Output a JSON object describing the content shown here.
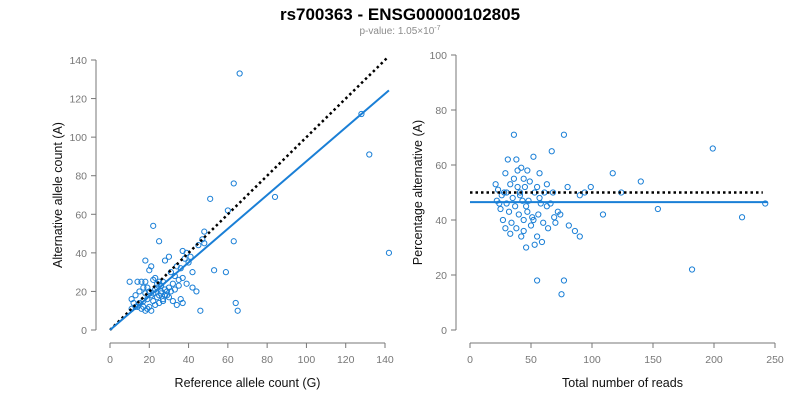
{
  "title": "rs700363 - ENSG00000102805",
  "subtitle": {
    "prefix": "p-value: 1.05×10",
    "exponent": "-7"
  },
  "colors": {
    "points": "#1a7fd6",
    "fit_line": "#1a7fd6",
    "reference_line": "#000000"
  },
  "chart_data": [
    {
      "type": "scatter",
      "xlabel": "Reference allele count (G)",
      "ylabel": "Alternative allele count (A)",
      "xlim": [
        0,
        140
      ],
      "ylim": [
        0,
        140
      ],
      "xticks": [
        0,
        20,
        40,
        60,
        80,
        100,
        120,
        140
      ],
      "yticks": [
        0,
        20,
        40,
        60,
        80,
        100,
        120,
        140
      ],
      "reference_line": {
        "style": "dotted",
        "color": "#000000",
        "intercept": 0,
        "slope": 1.0,
        "x_range": [
          0,
          141
        ]
      },
      "fit_line": {
        "style": "solid",
        "color": "#1a7fd6",
        "intercept": 0,
        "slope": 0.875,
        "x_range": [
          0,
          142
        ]
      },
      "points": [
        [
          66,
          133
        ],
        [
          128,
          112
        ],
        [
          132,
          91
        ],
        [
          142,
          40
        ],
        [
          84,
          69
        ],
        [
          63,
          76
        ],
        [
          51,
          68
        ],
        [
          60,
          62
        ],
        [
          48,
          51
        ],
        [
          47,
          47
        ],
        [
          63,
          46
        ],
        [
          53,
          31
        ],
        [
          59,
          30
        ],
        [
          64,
          14
        ],
        [
          65,
          10
        ],
        [
          46,
          10
        ],
        [
          22,
          54
        ],
        [
          25,
          46
        ],
        [
          37,
          41
        ],
        [
          39,
          40
        ],
        [
          38,
          37
        ],
        [
          40,
          35
        ],
        [
          34,
          33
        ],
        [
          36,
          32
        ],
        [
          30,
          38
        ],
        [
          28,
          36
        ],
        [
          31,
          30
        ],
        [
          33,
          28
        ],
        [
          35,
          26
        ],
        [
          37,
          27
        ],
        [
          39,
          24
        ],
        [
          42,
          22
        ],
        [
          44,
          20
        ],
        [
          36,
          16
        ],
        [
          37,
          14
        ],
        [
          32,
          24
        ],
        [
          30,
          22
        ],
        [
          29,
          20
        ],
        [
          27,
          25
        ],
        [
          25,
          25
        ],
        [
          23,
          27
        ],
        [
          21,
          33
        ],
        [
          18,
          36
        ],
        [
          20,
          31
        ],
        [
          22,
          26
        ],
        [
          24,
          22
        ],
        [
          26,
          20
        ],
        [
          28,
          18
        ],
        [
          30,
          17
        ],
        [
          32,
          15
        ],
        [
          34,
          13
        ],
        [
          18,
          25
        ],
        [
          16,
          25
        ],
        [
          14,
          25
        ],
        [
          19,
          22
        ],
        [
          17,
          22
        ],
        [
          15,
          20
        ],
        [
          13,
          18
        ],
        [
          11,
          16
        ],
        [
          10,
          25
        ],
        [
          12,
          14
        ],
        [
          14,
          12
        ],
        [
          16,
          11
        ],
        [
          18,
          10
        ],
        [
          20,
          12
        ],
        [
          22,
          15
        ],
        [
          24,
          17
        ],
        [
          26,
          19
        ],
        [
          28,
          21
        ],
        [
          21,
          18
        ],
        [
          19,
          16
        ],
        [
          17,
          15
        ],
        [
          15,
          14
        ],
        [
          13,
          12
        ],
        [
          11,
          11
        ],
        [
          23,
          13
        ],
        [
          25,
          14
        ],
        [
          27,
          16
        ],
        [
          29,
          18
        ],
        [
          31,
          20
        ],
        [
          33,
          21
        ],
        [
          35,
          23
        ],
        [
          22,
          19
        ],
        [
          20,
          20
        ],
        [
          18,
          19
        ],
        [
          24,
          24
        ],
        [
          26,
          23
        ],
        [
          21,
          10
        ],
        [
          19,
          11
        ],
        [
          17,
          12
        ],
        [
          23,
          21
        ],
        [
          25,
          18
        ],
        [
          27,
          15
        ],
        [
          42,
          30
        ],
        [
          45,
          44
        ],
        [
          48,
          45
        ],
        [
          41,
          38
        ]
      ]
    },
    {
      "type": "scatter",
      "xlabel": "Total number of reads",
      "ylabel": "Percentage alternative (A)",
      "xlim": [
        0,
        250
      ],
      "ylim": [
        0,
        100
      ],
      "xticks": [
        0,
        50,
        100,
        150,
        200,
        250
      ],
      "yticks": [
        0,
        20,
        40,
        60,
        80,
        100
      ],
      "reference_line": {
        "style": "dotted",
        "color": "#000000",
        "y": 50,
        "x_range": [
          0,
          240
        ]
      },
      "fit_line": {
        "style": "solid",
        "color": "#1a7fd6",
        "y": 46.5,
        "x_range": [
          0,
          244
        ]
      },
      "points": [
        [
          36,
          71
        ],
        [
          77,
          71
        ],
        [
          199,
          66
        ],
        [
          67,
          65
        ],
        [
          52,
          63
        ],
        [
          31,
          62
        ],
        [
          38,
          62
        ],
        [
          42,
          59
        ],
        [
          47,
          58
        ],
        [
          29,
          57
        ],
        [
          57,
          57
        ],
        [
          117,
          57
        ],
        [
          140,
          54
        ],
        [
          44,
          55
        ],
        [
          49,
          54
        ],
        [
          33,
          53
        ],
        [
          39,
          52
        ],
        [
          45,
          52
        ],
        [
          55,
          52
        ],
        [
          80,
          52
        ],
        [
          99,
          52
        ],
        [
          23,
          51
        ],
        [
          28,
          50
        ],
        [
          41,
          50
        ],
        [
          53,
          50
        ],
        [
          61,
          50
        ],
        [
          90,
          49
        ],
        [
          124,
          50
        ],
        [
          26,
          49
        ],
        [
          35,
          48
        ],
        [
          43,
          47
        ],
        [
          48,
          47
        ],
        [
          58,
          46
        ],
        [
          66,
          46
        ],
        [
          22,
          47
        ],
        [
          30,
          46
        ],
        [
          37,
          45
        ],
        [
          46,
          45
        ],
        [
          63,
          45
        ],
        [
          154,
          44
        ],
        [
          242,
          46
        ],
        [
          25,
          44
        ],
        [
          32,
          43
        ],
        [
          40,
          42
        ],
        [
          51,
          41
        ],
        [
          56,
          42
        ],
        [
          69,
          41
        ],
        [
          74,
          42
        ],
        [
          109,
          42
        ],
        [
          223,
          41
        ],
        [
          27,
          40
        ],
        [
          34,
          39
        ],
        [
          44,
          40
        ],
        [
          52,
          40
        ],
        [
          60,
          39
        ],
        [
          70,
          39
        ],
        [
          29,
          37
        ],
        [
          38,
          37
        ],
        [
          50,
          38
        ],
        [
          64,
          37
        ],
        [
          86,
          36
        ],
        [
          33,
          35
        ],
        [
          42,
          34
        ],
        [
          55,
          34
        ],
        [
          59,
          32
        ],
        [
          90,
          34
        ],
        [
          53,
          31
        ],
        [
          46,
          30
        ],
        [
          77,
          18
        ],
        [
          55,
          18
        ],
        [
          75,
          13
        ],
        [
          182,
          22
        ],
        [
          24,
          46
        ],
        [
          21,
          53
        ],
        [
          36,
          55
        ],
        [
          41,
          49
        ],
        [
          47,
          43
        ],
        [
          57,
          48
        ],
        [
          63,
          53
        ],
        [
          68,
          50
        ],
        [
          72,
          43
        ],
        [
          81,
          38
        ],
        [
          94,
          50
        ],
        [
          30,
          50
        ],
        [
          39,
          58
        ],
        [
          44,
          36
        ]
      ]
    }
  ]
}
